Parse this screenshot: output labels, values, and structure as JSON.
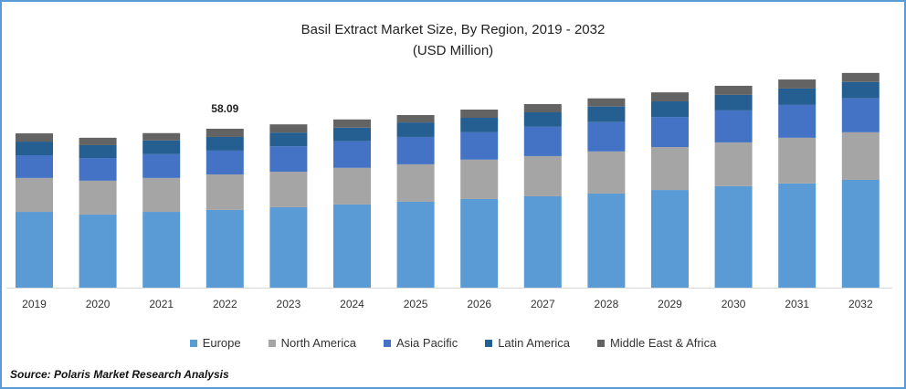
{
  "chart_data": {
    "type": "bar",
    "stacked": true,
    "title": "Basil Extract Market Size, By Region, 2019 - 2032",
    "subtitle": "(USD Million)",
    "categories": [
      "2019",
      "2020",
      "2021",
      "2022",
      "2023",
      "2024",
      "2025",
      "2026",
      "2027",
      "2028",
      "2029",
      "2030",
      "2031",
      "2032"
    ],
    "series": [
      {
        "name": "Europe",
        "color": "#5b9bd5",
        "values": [
          27.7,
          26.7,
          27.7,
          28.4,
          29.4,
          30.4,
          31.4,
          32.4,
          33.4,
          34.4,
          35.7,
          37.1,
          38.1,
          39.4
        ]
      },
      {
        "name": "North America",
        "color": "#a5a5a5",
        "values": [
          12.4,
          12.4,
          12.4,
          13.0,
          13.0,
          13.4,
          13.7,
          14.4,
          14.7,
          15.4,
          15.7,
          16.0,
          16.7,
          17.4
        ]
      },
      {
        "name": "Asia Pacific",
        "color": "#4472c4",
        "values": [
          8.3,
          8.3,
          8.7,
          8.7,
          9.3,
          9.7,
          10.0,
          10.0,
          10.7,
          10.7,
          11.0,
          11.7,
          12.0,
          12.4
        ]
      },
      {
        "name": "Latin America",
        "color": "#255e91",
        "values": [
          5.0,
          4.7,
          5.0,
          5.0,
          5.0,
          5.0,
          5.3,
          5.3,
          5.3,
          5.7,
          5.7,
          5.7,
          6.0,
          6.0
        ]
      },
      {
        "name": "Middle East & Africa",
        "color": "#636363",
        "values": [
          3.0,
          2.7,
          2.7,
          3.0,
          3.0,
          3.0,
          2.7,
          3.0,
          3.0,
          3.0,
          3.3,
          3.3,
          3.3,
          3.3
        ]
      }
    ],
    "annotations": [
      {
        "category": "2022",
        "text": "58.09"
      }
    ],
    "xlabel": "",
    "ylabel": "",
    "y_axis_visible": false,
    "grid": false,
    "legend_position": "bottom"
  },
  "source": "Source: Polaris  Market Research Analysis"
}
